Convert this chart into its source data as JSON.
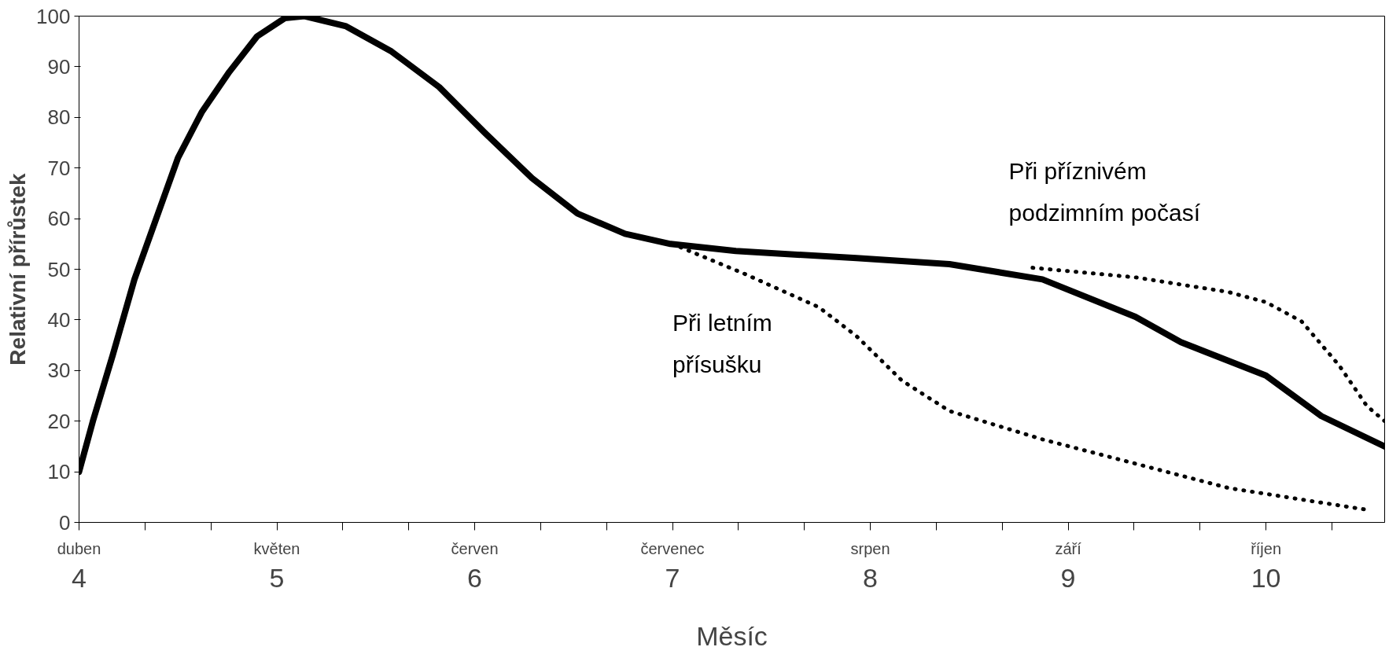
{
  "chart_data": {
    "type": "line",
    "xlabel": "Měsíc",
    "ylabel": "Relativní přírůstek",
    "xlim": [
      4,
      10.6
    ],
    "ylim": [
      0,
      100
    ],
    "xticks": [
      4,
      {
        "value": 4.333,
        "label": null
      },
      {
        "value": 4.667,
        "label": null
      },
      5,
      {
        "value": 5.333,
        "label": null
      },
      {
        "value": 5.667,
        "label": null
      },
      6,
      {
        "value": 6.333,
        "label": null
      },
      {
        "value": 6.667,
        "label": null
      },
      7,
      {
        "value": 7.333,
        "label": null
      },
      {
        "value": 7.667,
        "label": null
      },
      8,
      {
        "value": 8.333,
        "label": null
      },
      {
        "value": 8.667,
        "label": null
      },
      9,
      {
        "value": 9.333,
        "label": null
      },
      {
        "value": 9.667,
        "label": null
      },
      10,
      {
        "value": 10.333,
        "label": null
      }
    ],
    "annotations": [
      "duben",
      "květen",
      "červen",
      "červenec",
      "srpen",
      "září",
      "říjen"
    ],
    "yticks": [
      0,
      10,
      20,
      30,
      40,
      50,
      60,
      70,
      80,
      90,
      100
    ],
    "series": [
      {
        "color": "#000000",
        "line_style": "solid",
        "x": [
          4.0,
          4.07,
          4.17,
          4.28,
          4.39,
          4.5,
          4.62,
          4.76,
          4.9,
          5.04,
          5.14,
          5.35,
          5.58,
          5.82,
          6.05,
          6.29,
          6.52,
          6.76,
          6.99,
          7.32,
          7.93,
          8.4,
          8.87,
          9.34,
          9.57,
          10.0,
          10.28,
          10.6
        ],
        "values": [
          10,
          20,
          33,
          48,
          60,
          72,
          81,
          89,
          96,
          99.6,
          100,
          98,
          93,
          86,
          77,
          68,
          61,
          57,
          55,
          53.6,
          52.2,
          51,
          48,
          40.6,
          35.6,
          29,
          21,
          15
        ]
      },
      {
        "name": "Při letním přísušku",
        "color": "#000000",
        "line_style": "dotted",
        "x": [
          7.0,
          7.37,
          7.74,
          7.93,
          8.16,
          8.4,
          8.87,
          9.34,
          9.81,
          10.28,
          10.51
        ],
        "values": [
          55,
          49,
          42.5,
          36.8,
          28,
          22,
          16.4,
          11.6,
          6.8,
          3.9,
          2.5
        ]
      },
      {
        "name": "Při příznivém podzimním počasí",
        "color": "#000000",
        "line_style": "dotted",
        "x": [
          8.82,
          9.34,
          9.81,
          10.0,
          10.18,
          10.37,
          10.51,
          10.6
        ],
        "values": [
          50.3,
          48.4,
          45.5,
          43.5,
          39.7,
          31,
          23,
          20
        ]
      }
    ]
  }
}
